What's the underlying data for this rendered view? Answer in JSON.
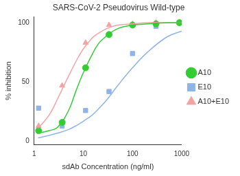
{
  "chart_data": {
    "type": "scatter",
    "title": "SARS-CoV-2 Pseudovirus Wild-type",
    "x_label": "sdAb Concentration (ng/ml)",
    "y_label": "% inhibition",
    "log": "x",
    "grid": false,
    "legend": "right",
    "xlim": [
      1,
      1000
    ],
    "xticks": [
      1,
      10,
      100,
      1000
    ],
    "ylim": [
      -3,
      105
    ],
    "yticks": [
      0,
      50,
      100
    ],
    "x": [
      1.23,
      3.7,
      11.1,
      33.3,
      100,
      300,
      900
    ],
    "fit_x": [
      1.2,
      2,
      3,
      5,
      7,
      10,
      15,
      20,
      30,
      50,
      100,
      200,
      500,
      1000
    ],
    "series": [
      {
        "name": "A10",
        "color": "#33cc33",
        "marker": "circle",
        "values": [
          9,
          16,
          62,
          90,
          98,
          99,
          100
        ],
        "fit_values": [
          7,
          9,
          12,
          26,
          42,
          58,
          73,
          82,
          89,
          95,
          98,
          99,
          100,
          100
        ]
      },
      {
        "name": "E10",
        "color": "#8fb4e8",
        "marker": "square",
        "values": [
          28,
          13,
          26,
          42,
          74,
          97,
          100
        ],
        "fit_values": [
          3,
          5,
          7,
          10,
          13,
          17,
          22,
          27,
          35,
          47,
          62,
          75,
          88,
          93
        ]
      },
      {
        "name": "A10+E10",
        "color": "#f4a3a3",
        "marker": "triangle",
        "values": [
          13,
          47,
          83,
          98,
          99,
          100,
          100
        ],
        "fit_values": [
          11,
          22,
          36,
          55,
          67,
          78,
          87,
          91,
          95,
          98,
          99,
          100,
          100,
          100
        ]
      }
    ]
  }
}
